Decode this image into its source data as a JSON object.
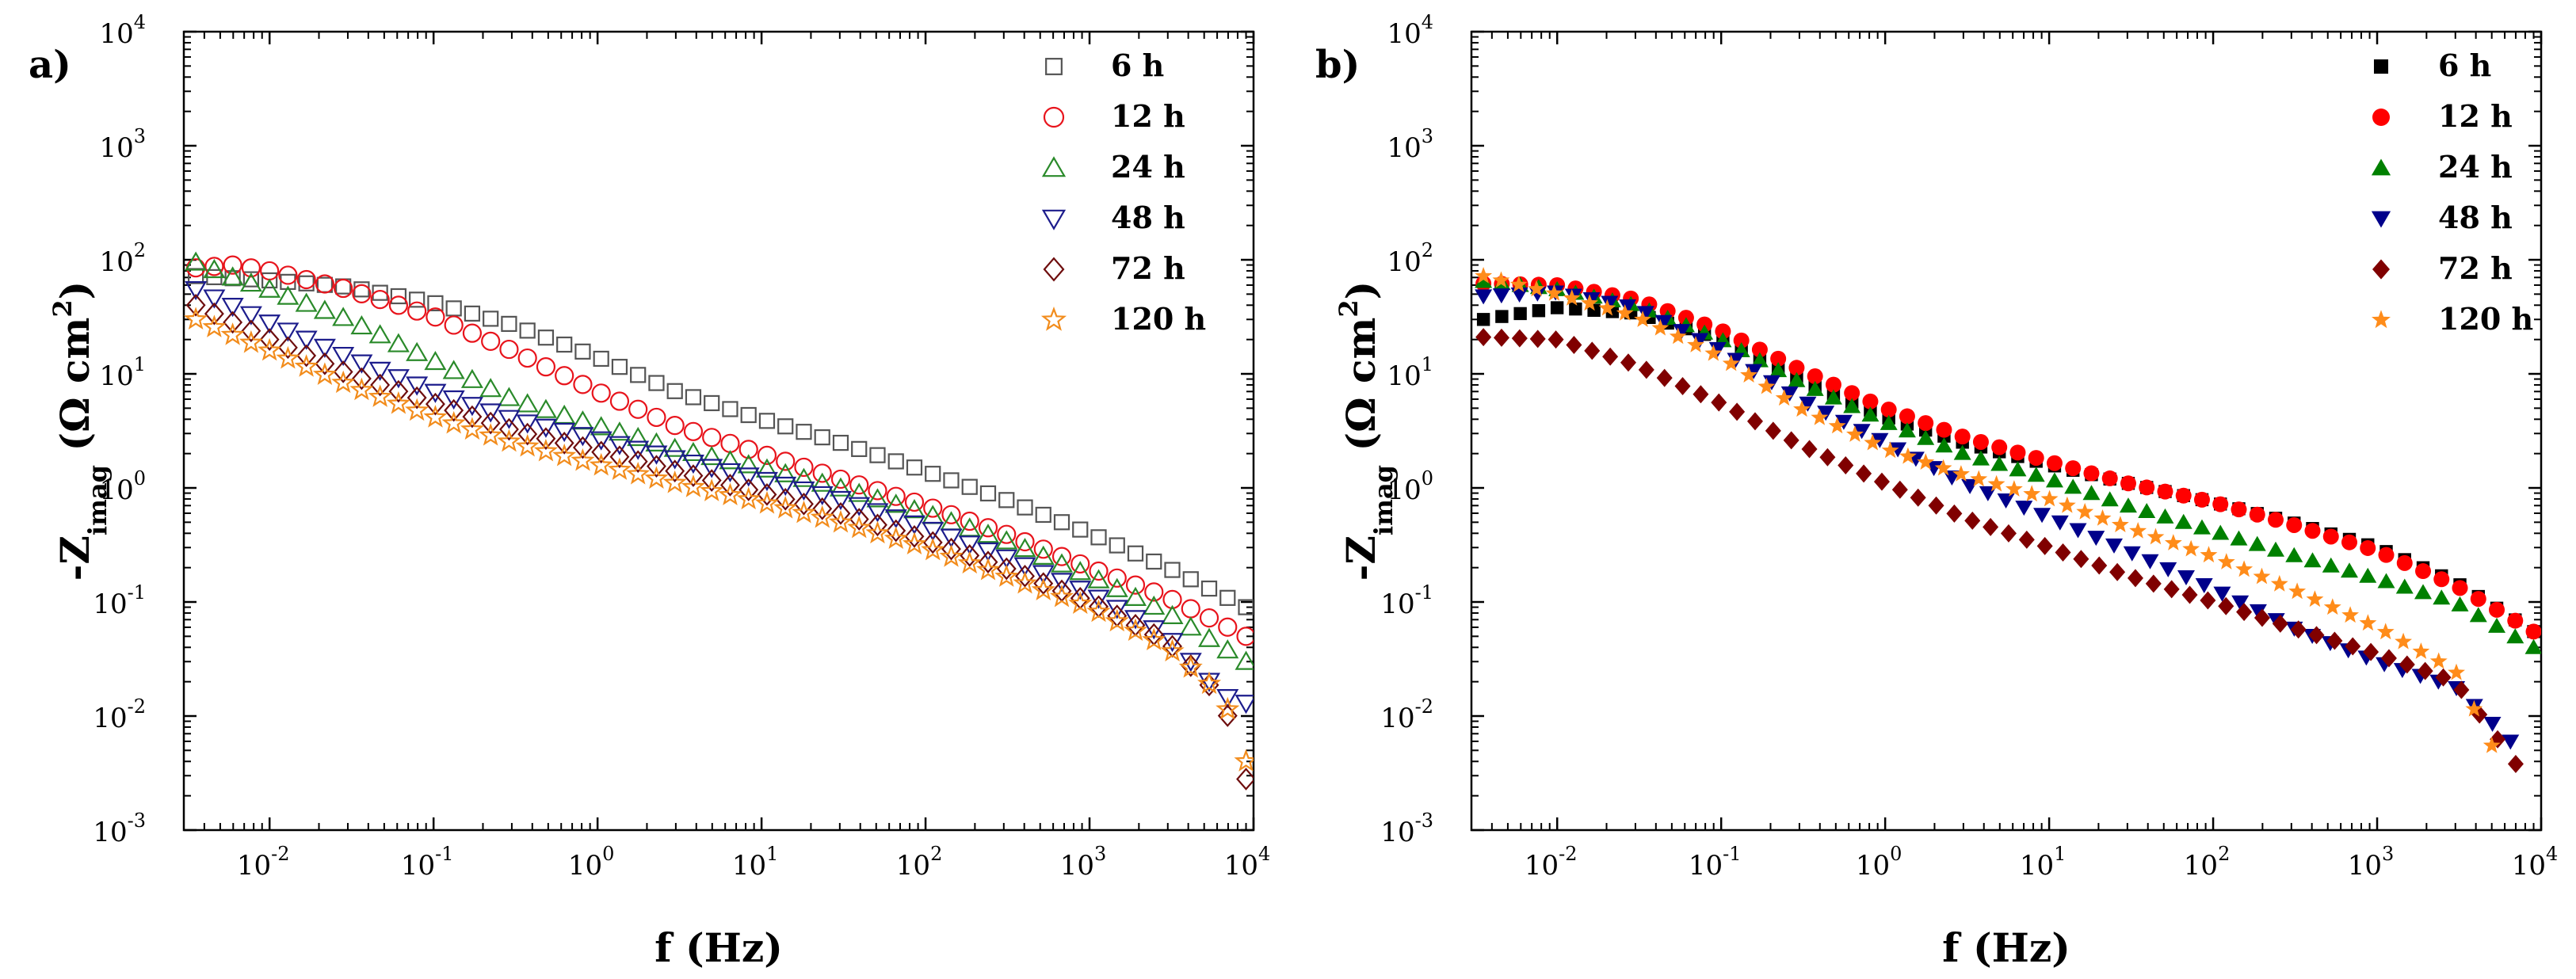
{
  "figure": {
    "panels": [
      {
        "label": "a)",
        "xlabel": "f (Hz)",
        "ylabel": {
          "prefix": "-Z",
          "subscript": "imag",
          "unit": "(Ω cm",
          "unit_sup": "2",
          "unit_close": ")"
        },
        "marker_style": "open",
        "legend": [
          "6 h",
          "12 h",
          "24 h",
          "48 h",
          "72 h",
          "120 h"
        ]
      },
      {
        "label": "b)",
        "xlabel": "f (Hz)",
        "ylabel": {
          "prefix": "-Z",
          "subscript": "imag",
          "unit": "(Ω cm",
          "unit_sup": "2",
          "unit_close": ")"
        },
        "marker_style": "filled",
        "legend": [
          "6 h",
          "12 h",
          "24 h",
          "48 h",
          "72 h",
          "120 h"
        ]
      }
    ],
    "x_ticks": {
      "base": "10",
      "exponents": [
        "-2",
        "-1",
        "0",
        "1",
        "2",
        "3",
        "4"
      ]
    },
    "y_ticks": {
      "base": "10",
      "exponents": [
        "-3",
        "-2",
        "-1",
        "0",
        "1",
        "2",
        "3",
        "4"
      ]
    }
  },
  "chart_data": [
    {
      "type": "scatter",
      "panel": "a)",
      "xlabel": "f (Hz)",
      "ylabel": "-Zimag (Ω cm2)",
      "xscale": "log",
      "yscale": "log",
      "xlim": [
        0.003,
        10000
      ],
      "ylim": [
        0.001,
        10000
      ],
      "legend_position": "top-right",
      "series": [
        {
          "name": "6 h",
          "marker": "square",
          "color": "#555555",
          "points": [
            [
              0.00355,
              72
            ],
            [
              0.01,
              66
            ],
            [
              0.03,
              58
            ],
            [
              0.1,
              42
            ],
            [
              0.3,
              27
            ],
            [
              1,
              14
            ],
            [
              3,
              7
            ],
            [
              10,
              4
            ],
            [
              30,
              2.5
            ],
            [
              100,
              1.4
            ],
            [
              300,
              0.8
            ],
            [
              1000,
              0.4
            ],
            [
              3000,
              0.2
            ],
            [
              9000,
              0.09
            ]
          ]
        },
        {
          "name": "12 h",
          "marker": "circle",
          "color": "#e8141c",
          "points": [
            [
              0.00355,
              85
            ],
            [
              0.006,
              90
            ],
            [
              0.01,
              80
            ],
            [
              0.03,
              55
            ],
            [
              0.1,
              32
            ],
            [
              0.3,
              16
            ],
            [
              1,
              7
            ],
            [
              3,
              3.5
            ],
            [
              10,
              2
            ],
            [
              30,
              1.2
            ],
            [
              100,
              0.7
            ],
            [
              300,
              0.4
            ],
            [
              1000,
              0.2
            ],
            [
              3000,
              0.11
            ],
            [
              9000,
              0.05
            ]
          ]
        },
        {
          "name": "24 h",
          "marker": "triangle-up",
          "color": "#2a8a2a",
          "points": [
            [
              0.00355,
              95
            ],
            [
              0.006,
              70
            ],
            [
              0.01,
              55
            ],
            [
              0.03,
              30
            ],
            [
              0.1,
              13
            ],
            [
              0.3,
              6
            ],
            [
              1,
              3.5
            ],
            [
              3,
              2.2
            ],
            [
              10,
              1.5
            ],
            [
              30,
              1
            ],
            [
              100,
              0.6
            ],
            [
              300,
              0.35
            ],
            [
              1000,
              0.17
            ],
            [
              3000,
              0.08
            ],
            [
              9000,
              0.03
            ]
          ]
        },
        {
          "name": "48 h",
          "marker": "triangle-down",
          "color": "#1c1c8c",
          "points": [
            [
              0.00355,
              55
            ],
            [
              0.01,
              28
            ],
            [
              0.03,
              14
            ],
            [
              0.1,
              7
            ],
            [
              0.3,
              4
            ],
            [
              1,
              2.7
            ],
            [
              3,
              1.8
            ],
            [
              10,
              1.2
            ],
            [
              30,
              0.8
            ],
            [
              100,
              0.45
            ],
            [
              300,
              0.25
            ],
            [
              1000,
              0.12
            ],
            [
              3000,
              0.05
            ],
            [
              6500,
              0.015
            ],
            [
              9000,
              0.013
            ]
          ]
        },
        {
          "name": "72 h",
          "marker": "diamond",
          "color": "#6e0d0d",
          "points": [
            [
              0.00355,
              40
            ],
            [
              0.01,
              20
            ],
            [
              0.03,
              10
            ],
            [
              0.1,
              5.5
            ],
            [
              0.3,
              3.2
            ],
            [
              1,
              2.1
            ],
            [
              3,
              1.4
            ],
            [
              10,
              0.9
            ],
            [
              30,
              0.6
            ],
            [
              100,
              0.35
            ],
            [
              300,
              0.2
            ],
            [
              1000,
              0.1
            ],
            [
              3000,
              0.045
            ],
            [
              6500,
              0.014
            ],
            [
              9000,
              0.0028
            ]
          ]
        },
        {
          "name": "120 h",
          "marker": "star",
          "color": "#f28c1c",
          "points": [
            [
              0.00355,
              30
            ],
            [
              0.01,
              16
            ],
            [
              0.03,
              8
            ],
            [
              0.1,
              4.2
            ],
            [
              0.3,
              2.5
            ],
            [
              1,
              1.6
            ],
            [
              3,
              1.1
            ],
            [
              10,
              0.75
            ],
            [
              30,
              0.5
            ],
            [
              100,
              0.3
            ],
            [
              300,
              0.17
            ],
            [
              1000,
              0.09
            ],
            [
              3000,
              0.04
            ],
            [
              6500,
              0.015
            ],
            [
              9000,
              0.004
            ]
          ]
        }
      ]
    },
    {
      "type": "scatter",
      "panel": "b)",
      "xlabel": "f (Hz)",
      "ylabel": "-Zimag (Ω cm2)",
      "xscale": "log",
      "yscale": "log",
      "xlim": [
        0.003,
        10000
      ],
      "ylim": [
        0.001,
        10000
      ],
      "legend_position": "top-right",
      "series": [
        {
          "name": "6 h",
          "marker": "square",
          "color": "#000000",
          "points": [
            [
              0.00355,
              30
            ],
            [
              0.01,
              38
            ],
            [
              0.03,
              34
            ],
            [
              0.1,
              20
            ],
            [
              0.3,
              9
            ],
            [
              1,
              4.2
            ],
            [
              3,
              2.5
            ],
            [
              10,
              1.6
            ],
            [
              30,
              1.1
            ],
            [
              100,
              0.75
            ],
            [
              300,
              0.5
            ],
            [
              1000,
              0.3
            ],
            [
              3000,
              0.15
            ],
            [
              9000,
              0.055
            ]
          ]
        },
        {
          "name": "12 h",
          "marker": "circle",
          "color": "#ff0000",
          "points": [
            [
              0.00355,
              62
            ],
            [
              0.01,
              60
            ],
            [
              0.03,
              45
            ],
            [
              0.1,
              24
            ],
            [
              0.3,
              11
            ],
            [
              1,
              5
            ],
            [
              3,
              2.8
            ],
            [
              10,
              1.7
            ],
            [
              30,
              1.1
            ],
            [
              100,
              0.75
            ],
            [
              300,
              0.48
            ],
            [
              1000,
              0.28
            ],
            [
              3000,
              0.14
            ],
            [
              9000,
              0.055
            ]
          ]
        },
        {
          "name": "24 h",
          "marker": "triangle-up",
          "color": "#008000",
          "points": [
            [
              0.00355,
              65
            ],
            [
              0.01,
              55
            ],
            [
              0.03,
              40
            ],
            [
              0.1,
              20
            ],
            [
              0.3,
              8.5
            ],
            [
              1,
              3.8
            ],
            [
              3,
              2
            ],
            [
              10,
              1.2
            ],
            [
              30,
              0.7
            ],
            [
              100,
              0.42
            ],
            [
              300,
              0.26
            ],
            [
              1000,
              0.16
            ],
            [
              3000,
              0.1
            ],
            [
              9000,
              0.04
            ]
          ]
        },
        {
          "name": "48 h",
          "marker": "triangle-down",
          "color": "#00008b",
          "points": [
            [
              0.00355,
              48
            ],
            [
              0.01,
              52
            ],
            [
              0.03,
              38
            ],
            [
              0.1,
              16
            ],
            [
              0.3,
              6
            ],
            [
              1,
              2.5
            ],
            [
              3,
              1.1
            ],
            [
              10,
              0.55
            ],
            [
              30,
              0.28
            ],
            [
              100,
              0.13
            ],
            [
              300,
              0.06
            ],
            [
              1000,
              0.03
            ],
            [
              3000,
              0.018
            ],
            [
              6500,
              0.006
            ]
          ]
        },
        {
          "name": "72 h",
          "marker": "diamond",
          "color": "#800000",
          "points": [
            [
              0.00355,
              21
            ],
            [
              0.01,
              20
            ],
            [
              0.03,
              12
            ],
            [
              0.1,
              5.5
            ],
            [
              0.3,
              2.4
            ],
            [
              1,
              1.1
            ],
            [
              3,
              0.55
            ],
            [
              10,
              0.3
            ],
            [
              30,
              0.17
            ],
            [
              100,
              0.1
            ],
            [
              300,
              0.06
            ],
            [
              1000,
              0.035
            ],
            [
              3000,
              0.02
            ],
            [
              7000,
              0.0038
            ]
          ]
        },
        {
          "name": "120 h",
          "marker": "star",
          "color": "#ff8c1a",
          "points": [
            [
              0.00355,
              72
            ],
            [
              0.01,
              50
            ],
            [
              0.03,
              32
            ],
            [
              0.1,
              14
            ],
            [
              0.3,
              5
            ],
            [
              1,
              2.2
            ],
            [
              3,
              1.3
            ],
            [
              10,
              0.8
            ],
            [
              30,
              0.45
            ],
            [
              100,
              0.25
            ],
            [
              300,
              0.13
            ],
            [
              1000,
              0.06
            ],
            [
              3000,
              0.025
            ],
            [
              5000,
              0.0055
            ]
          ]
        }
      ]
    }
  ]
}
